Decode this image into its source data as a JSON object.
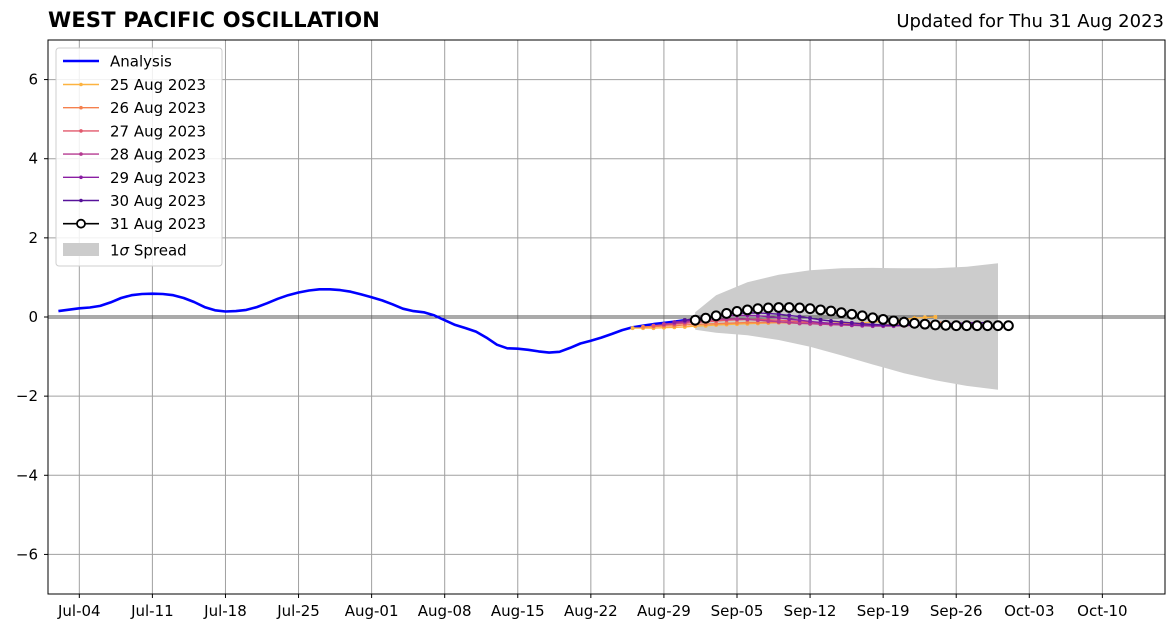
{
  "chart_data": {
    "type": "line",
    "title": "WEST PACIFIC OSCILLATION",
    "subtitle": "Updated for Thu 31 Aug 2023",
    "xlabel": "",
    "ylabel": "",
    "xlim": [
      "2023-07-01",
      "2023-10-16"
    ],
    "ylim": [
      -7,
      7
    ],
    "grid": true,
    "legend_position": "top-left",
    "x_ticks": [
      "Jul-04",
      "Jul-11",
      "Jul-18",
      "Jul-25",
      "Aug-01",
      "Aug-08",
      "Aug-15",
      "Aug-22",
      "Aug-29",
      "Sep-05",
      "Sep-12",
      "Sep-19",
      "Sep-26",
      "Oct-03",
      "Oct-10"
    ],
    "y_ticks": [
      -6,
      -4,
      -2,
      0,
      2,
      4,
      6
    ],
    "y_tick_labels": [
      "−6",
      "−4",
      "−2",
      "0",
      "2",
      "4",
      "6"
    ],
    "analysis": {
      "name": "Analysis",
      "color": "#0000ff",
      "x": [
        "2023-07-02",
        "2023-07-04",
        "2023-07-05",
        "2023-07-06",
        "2023-07-07",
        "2023-07-08",
        "2023-07-09",
        "2023-07-10",
        "2023-07-11",
        "2023-07-12",
        "2023-07-13",
        "2023-07-14",
        "2023-07-15",
        "2023-07-16",
        "2023-07-17",
        "2023-07-18",
        "2023-07-19",
        "2023-07-20",
        "2023-07-21",
        "2023-07-22",
        "2023-07-23",
        "2023-07-24",
        "2023-07-25",
        "2023-07-26",
        "2023-07-27",
        "2023-07-28",
        "2023-07-29",
        "2023-07-30",
        "2023-07-31",
        "2023-08-01",
        "2023-08-02",
        "2023-08-03",
        "2023-08-04",
        "2023-08-05",
        "2023-08-06",
        "2023-08-07",
        "2023-08-08",
        "2023-08-09",
        "2023-08-10",
        "2023-08-11",
        "2023-08-12",
        "2023-08-13",
        "2023-08-14",
        "2023-08-15",
        "2023-08-16",
        "2023-08-17",
        "2023-08-18",
        "2023-08-19",
        "2023-08-20",
        "2023-08-21",
        "2023-08-22",
        "2023-08-23",
        "2023-08-24",
        "2023-08-25",
        "2023-08-26",
        "2023-08-27",
        "2023-08-28",
        "2023-08-29",
        "2023-08-30",
        "2023-08-31"
      ],
      "y": [
        0.15,
        0.22,
        0.24,
        0.28,
        0.37,
        0.48,
        0.55,
        0.58,
        0.59,
        0.58,
        0.55,
        0.48,
        0.38,
        0.25,
        0.17,
        0.14,
        0.15,
        0.18,
        0.25,
        0.35,
        0.46,
        0.55,
        0.62,
        0.67,
        0.7,
        0.7,
        0.68,
        0.64,
        0.57,
        0.5,
        0.42,
        0.32,
        0.21,
        0.15,
        0.12,
        0.04,
        -0.08,
        -0.2,
        -0.28,
        -0.37,
        -0.52,
        -0.7,
        -0.79,
        -0.8,
        -0.83,
        -0.87,
        -0.9,
        -0.88,
        -0.78,
        -0.67,
        -0.6,
        -0.52,
        -0.43,
        -0.33,
        -0.26,
        -0.22,
        -0.18,
        -0.15,
        -0.12,
        -0.08
      ]
    },
    "forecasts": [
      {
        "name": "25 Aug 2023",
        "color": "#fdb340",
        "start": "2023-08-26",
        "values": [
          -0.28,
          -0.28,
          -0.28,
          -0.27,
          -0.26,
          -0.25,
          -0.23,
          -0.22,
          -0.2,
          -0.19,
          -0.18,
          -0.17,
          -0.16,
          -0.15,
          -0.14,
          -0.14,
          -0.14,
          -0.14,
          -0.15,
          -0.15,
          -0.16,
          -0.16,
          -0.15,
          -0.13,
          -0.11,
          -0.09,
          -0.06,
          -0.03,
          -0.01,
          0.0
        ]
      },
      {
        "name": "26 Aug 2023",
        "color": "#f5804e",
        "start": "2023-08-27",
        "values": [
          -0.25,
          -0.24,
          -0.23,
          -0.22,
          -0.2,
          -0.19,
          -0.18,
          -0.17,
          -0.16,
          -0.15,
          -0.14,
          -0.14,
          -0.14,
          -0.14,
          -0.15,
          -0.16,
          -0.17,
          -0.18,
          -0.19,
          -0.2,
          -0.21,
          -0.21,
          -0.21,
          -0.2,
          -0.19,
          -0.18,
          -0.16,
          -0.15,
          -0.14,
          -0.13
        ]
      },
      {
        "name": "27 Aug 2023",
        "color": "#e2586c",
        "start": "2023-08-28",
        "values": [
          -0.22,
          -0.2,
          -0.18,
          -0.16,
          -0.14,
          -0.12,
          -0.1,
          -0.08,
          -0.07,
          -0.06,
          -0.06,
          -0.07,
          -0.08,
          -0.1,
          -0.12,
          -0.14,
          -0.15,
          -0.17,
          -0.18,
          -0.19,
          -0.2,
          -0.21,
          -0.22,
          -0.22,
          -0.22,
          -0.21,
          -0.2,
          -0.19,
          -0.18,
          -0.17
        ]
      },
      {
        "name": "28 Aug 2023",
        "color": "#b53a91",
        "start": "2023-08-29",
        "values": [
          -0.18,
          -0.16,
          -0.13,
          -0.1,
          -0.08,
          -0.06,
          -0.05,
          -0.05,
          -0.06,
          -0.08,
          -0.1,
          -0.12,
          -0.14,
          -0.16,
          -0.17,
          -0.18,
          -0.19,
          -0.2,
          -0.21,
          -0.22,
          -0.23,
          -0.23,
          -0.23,
          -0.22,
          -0.21,
          -0.2,
          -0.19,
          -0.18,
          -0.17,
          -0.16
        ]
      },
      {
        "name": "29 Aug 2023",
        "color": "#8a1ea3",
        "start": "2023-08-30",
        "values": [
          -0.13,
          -0.1,
          -0.06,
          -0.02,
          0.01,
          0.03,
          0.04,
          0.04,
          0.03,
          0.01,
          -0.02,
          -0.05,
          -0.08,
          -0.11,
          -0.14,
          -0.16,
          -0.18,
          -0.2,
          -0.21,
          -0.22,
          -0.22,
          -0.22,
          -0.21,
          -0.2,
          -0.19,
          -0.18,
          -0.17,
          -0.16,
          -0.15,
          -0.14
        ]
      },
      {
        "name": "30 Aug 2023",
        "color": "#57129a",
        "start": "2023-08-31",
        "values": [
          -0.08,
          -0.04,
          0.0,
          0.04,
          0.07,
          0.09,
          0.1,
          0.1,
          0.09,
          0.07,
          0.04,
          0.01,
          -0.03,
          -0.07,
          -0.1,
          -0.13,
          -0.15,
          -0.17,
          -0.19,
          -0.2,
          -0.21,
          -0.21,
          -0.21,
          -0.2,
          -0.19,
          -0.18,
          -0.17,
          -0.16,
          -0.15,
          -0.14
        ]
      },
      {
        "name": "31 Aug 2023",
        "color": "#000000",
        "start": "2023-09-01",
        "hollow_markers": true,
        "values": [
          -0.08,
          -0.03,
          0.03,
          0.09,
          0.14,
          0.18,
          0.21,
          0.23,
          0.24,
          0.24,
          0.23,
          0.21,
          0.18,
          0.15,
          0.11,
          0.07,
          0.03,
          -0.02,
          -0.06,
          -0.1,
          -0.13,
          -0.16,
          -0.18,
          -0.2,
          -0.21,
          -0.22,
          -0.22,
          -0.22,
          -0.22,
          -0.22,
          -0.22
        ]
      }
    ],
    "spread": {
      "name": "1σ Spread",
      "color": "#cccccc",
      "x": [
        "2023-09-01",
        "2023-09-03",
        "2023-09-06",
        "2023-09-09",
        "2023-09-12",
        "2023-09-15",
        "2023-09-18",
        "2023-09-21",
        "2023-09-24",
        "2023-09-27",
        "2023-09-30"
      ],
      "upper": [
        0.12,
        0.55,
        0.88,
        1.07,
        1.18,
        1.23,
        1.24,
        1.23,
        1.23,
        1.27,
        1.36
      ],
      "lower": [
        -0.32,
        -0.4,
        -0.46,
        -0.58,
        -0.75,
        -0.97,
        -1.2,
        -1.42,
        -1.6,
        -1.74,
        -1.84
      ]
    },
    "legend": {
      "analysis": "Analysis",
      "spread_prefix": "1",
      "spread_sigma": "σ",
      "spread_suffix": " Spread"
    }
  }
}
